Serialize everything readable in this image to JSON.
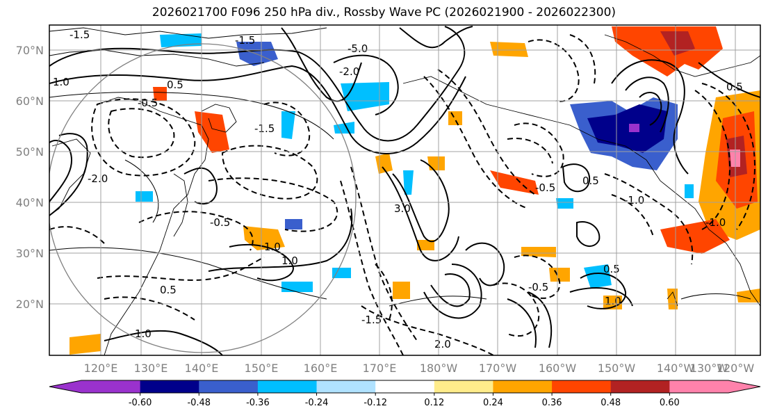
{
  "title": "2026021700 F096 250 hPa div., Rossby Wave PC (2026021900 - 2026022300)",
  "map": {
    "lon_labels": [
      "120°E",
      "130°E",
      "140°E",
      "150°E",
      "160°E",
      "170°E",
      "180°W",
      "170°W",
      "160°W",
      "150°W",
      "140°W",
      "130°W",
      "120°W"
    ],
    "lat_labels": [
      "70°N",
      "60°N",
      "50°N",
      "40°N",
      "30°N",
      "20°N"
    ],
    "contour_labels": [
      "-1.5",
      "0.5",
      "-5.0",
      "-2.0",
      "1.0",
      "-1.5",
      "-0.5",
      "-2.0",
      "3.0",
      "-1.5",
      "1.0",
      "-1.0",
      "0.5",
      "-0.5",
      "-0.5",
      "1.0",
      "0.5",
      "1.0",
      "0.5",
      "-1.0",
      "-0.5",
      "-1.5",
      "0.5",
      "1.0",
      "2.0"
    ]
  },
  "colorbar": {
    "ticks": [
      "-0.60",
      "-0.48",
      "-0.36",
      "-0.24",
      "-0.12",
      "0.12",
      "0.24",
      "0.36",
      "0.48",
      "0.60"
    ],
    "colors": [
      "#9a32cd",
      "#00008b",
      "#3a5fcd",
      "#00bfff",
      "#b0e2ff",
      "#ffffff",
      "#ffec8b",
      "#ffa500",
      "#ff4500",
      "#b22222",
      "#ff82ab"
    ]
  },
  "colors": {
    "frame": "#000000",
    "grid": "#a0a0a0",
    "contour": "#000000"
  }
}
